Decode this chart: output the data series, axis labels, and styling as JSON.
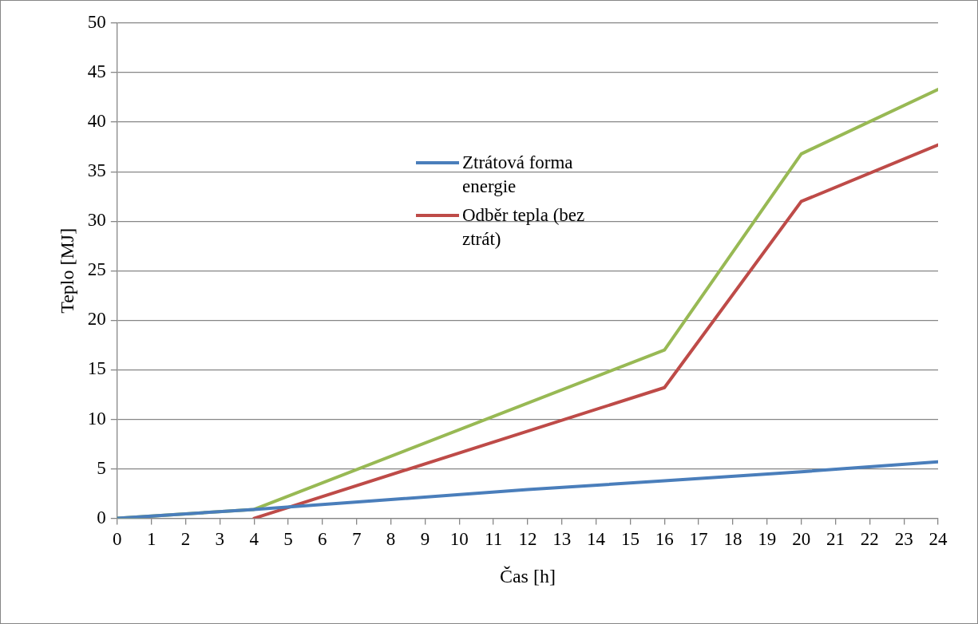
{
  "chart_data": {
    "type": "line",
    "xlabel": "Čas [h]",
    "ylabel": "Teplo [MJ]",
    "xlim": [
      0,
      24
    ],
    "xticks": [
      0,
      1,
      2,
      3,
      4,
      5,
      6,
      7,
      8,
      9,
      10,
      11,
      12,
      13,
      14,
      15,
      16,
      17,
      18,
      19,
      20,
      21,
      22,
      23,
      24
    ],
    "ylim": [
      0,
      50
    ],
    "yticks": [
      0,
      5,
      10,
      15,
      20,
      25,
      30,
      35,
      40,
      45,
      50
    ],
    "grid": "y",
    "legend": "center",
    "marker": "none",
    "line_style": "solid",
    "series": [
      {
        "name": "Ztrátová forma energie",
        "color": "#4a7ebb",
        "x": [
          0,
          4,
          8,
          12,
          16,
          20,
          24
        ],
        "values": [
          0,
          0.9,
          1.9,
          2.9,
          3.8,
          4.7,
          5.7
        ]
      },
      {
        "name": "Odběr tepla (bez ztrát)",
        "color": "#be4b48",
        "x": [
          4,
          16,
          20,
          24
        ],
        "values": [
          0,
          13.2,
          32,
          37.7
        ]
      },
      {
        "color": "#98b954",
        "x": [
          0,
          4,
          16,
          20,
          24
        ],
        "values": [
          0,
          0.9,
          17,
          36.8,
          43.3
        ]
      }
    ]
  }
}
